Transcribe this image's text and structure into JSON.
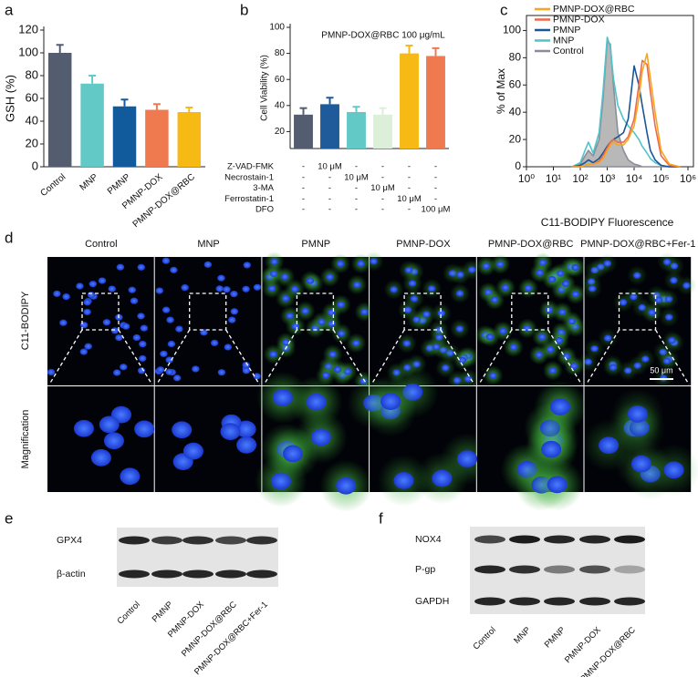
{
  "chart_data": [
    {
      "type": "bar",
      "panel_label": "a",
      "y_label": "GSH (%)",
      "categories": [
        "Control",
        "MNP",
        "PMNP",
        "PMNP-DOX",
        "PMNP-DOX@RBC"
      ],
      "values": [
        100,
        73,
        53,
        50,
        48
      ],
      "errors": [
        7,
        7,
        6,
        5,
        4
      ],
      "colors": [
        "#545d70",
        "#62c9c6",
        "#115a9c",
        "#f07a50",
        "#f7b913"
      ],
      "ylim": [
        0,
        120
      ],
      "yticks": [
        0,
        20,
        40,
        60,
        80,
        100,
        120
      ]
    },
    {
      "type": "bar",
      "panel_label": "b",
      "y_label": "Cell Viability (%)",
      "annotation": "PMNP-DOX@RBC 100 μg/mL",
      "values": [
        33,
        41,
        35,
        33,
        80,
        78
      ],
      "errors": [
        5,
        5,
        4,
        5,
        6,
        6
      ],
      "colors": [
        "#545d70",
        "#1f5a9a",
        "#62c9c6",
        "#dcefd8",
        "#f7b913",
        "#f07a50"
      ],
      "ylim": [
        7,
        100
      ],
      "yticks": [
        20,
        40,
        60,
        80,
        100
      ],
      "treatments": {
        "names": [
          "Z-VAD-FMK",
          "Necrostain-1",
          "3-MA",
          "Ferrostatin-1",
          "DFO"
        ],
        "cells": [
          [
            "-",
            "10 μM",
            "-",
            "-",
            "-",
            "-"
          ],
          [
            "-",
            "-",
            "10 μM",
            "-",
            "-",
            "-"
          ],
          [
            "-",
            "-",
            "-",
            "10 μM",
            "-",
            "-"
          ],
          [
            "-",
            "-",
            "-",
            "-",
            "10 μM",
            "-"
          ],
          [
            "-",
            "-",
            "-",
            "-",
            "-",
            "100 μM"
          ]
        ]
      }
    },
    {
      "type": "line",
      "panel_label": "c",
      "x_label": "C11-BODIPY Fluorescence",
      "y_label": "% of Max",
      "log_x": true,
      "legend_position": "upper left",
      "x": [
        50,
        100,
        150,
        200,
        300,
        500,
        700,
        1000,
        1300,
        1700,
        2500,
        4000,
        6000,
        10000,
        15000,
        20000,
        30000,
        40000,
        60000,
        100000,
        200000,
        500000
      ],
      "xlim": [
        1,
        1000000
      ],
      "xticks": [
        {
          "value": 1,
          "label": "10⁰"
        },
        {
          "value": 10,
          "label": "10¹"
        },
        {
          "value": 100,
          "label": "10²"
        },
        {
          "value": 1000,
          "label": "10³"
        },
        {
          "value": 10000,
          "label": "10⁴"
        },
        {
          "value": 100000,
          "label": "10⁵"
        },
        {
          "value": 1000000,
          "label": "10⁶"
        }
      ],
      "ylim": [
        0,
        111
      ],
      "yticks": [
        0,
        20,
        40,
        60,
        80,
        100
      ],
      "series": [
        {
          "name": "PMNP-DOX@RBC",
          "color": "#f5a623",
          "values": [
            0,
            0,
            1,
            2,
            2,
            3,
            6,
            12,
            16,
            18,
            16,
            16,
            20,
            30,
            50,
            70,
            83,
            65,
            40,
            12,
            2,
            0
          ]
        },
        {
          "name": "PMNP-DOX",
          "color": "#ec6a4c",
          "values": [
            0,
            0,
            1,
            2,
            2,
            4,
            8,
            14,
            18,
            20,
            18,
            18,
            22,
            35,
            60,
            78,
            75,
            55,
            30,
            8,
            1,
            0
          ]
        },
        {
          "name": "PMNP",
          "color": "#1a5596",
          "values": [
            0,
            1,
            3,
            5,
            3,
            6,
            10,
            15,
            18,
            20,
            22,
            25,
            35,
            74,
            60,
            45,
            25,
            12,
            5,
            1,
            0,
            0
          ]
        },
        {
          "name": "MNP",
          "color": "#4fc3c9",
          "values": [
            0,
            3,
            12,
            18,
            10,
            25,
            55,
            95,
            88,
            65,
            45,
            35,
            30,
            25,
            20,
            15,
            10,
            6,
            3,
            1,
            0,
            0
          ]
        },
        {
          "name": "Control",
          "color": "#8c8c9a",
          "fill": "#b8b8b8",
          "values": [
            0,
            2,
            8,
            12,
            8,
            20,
            50,
            92,
            90,
            60,
            25,
            12,
            5,
            2,
            1,
            0,
            0,
            0,
            0,
            0,
            0,
            0
          ]
        }
      ]
    }
  ],
  "microscopy": {
    "panel_label": "d",
    "columns": [
      "Control",
      "MNP",
      "PMNP",
      "PMNP-DOX",
      "PMNP-DOX@RBC",
      "PMNP-DOX@RBC+Fer-1"
    ],
    "rows": [
      "C11-BODIPY",
      "Magnification"
    ],
    "scale_bar": "50 μm"
  },
  "blot_e": {
    "panel_label": "e",
    "proteins": [
      "GPX4",
      "β-actin"
    ],
    "lanes": [
      "Control",
      "PMNP",
      "PMNP-DOX",
      "PMNP-DOX@RBC",
      "PMNP-DOX@RBC+Fer-1"
    ]
  },
  "blot_f": {
    "panel_label": "f",
    "proteins": [
      "NOX4",
      "P-gp",
      "GAPDH"
    ],
    "lanes": [
      "Control",
      "MNP",
      "PMNP",
      "PMNP-DOX",
      "PMNP-DOX@RBC"
    ]
  }
}
